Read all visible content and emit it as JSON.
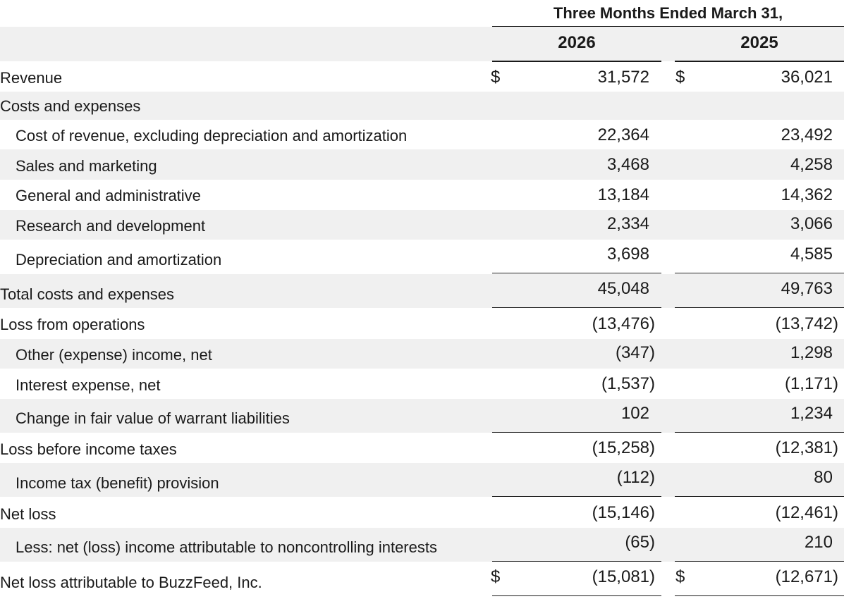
{
  "header": {
    "title": "Three Months Ended March 31,",
    "year1": "2026",
    "year2": "2025"
  },
  "currency_symbol": "$",
  "rows": [
    {
      "label": "Revenue",
      "v1": "31,572",
      "v2": "36,021"
    },
    {
      "label": "Costs and expenses",
      "v1": "",
      "v2": ""
    },
    {
      "label": "Cost of revenue, excluding depreciation and amortization",
      "v1": "22,364",
      "v2": "23,492"
    },
    {
      "label": "Sales and marketing",
      "v1": "3,468",
      "v2": "4,258"
    },
    {
      "label": "General and administrative",
      "v1": "13,184",
      "v2": "14,362"
    },
    {
      "label": "Research and development",
      "v1": "2,334",
      "v2": "3,066"
    },
    {
      "label": "Depreciation and amortization",
      "v1": "3,698",
      "v2": "4,585"
    },
    {
      "label": "Total costs and expenses",
      "v1": "45,048",
      "v2": "49,763"
    },
    {
      "label": "Loss from operations",
      "v1": "(13,476)",
      "v2": "(13,742)"
    },
    {
      "label": "Other (expense) income, net",
      "v1": "(347)",
      "v2": "1,298"
    },
    {
      "label": "Interest expense, net",
      "v1": "(1,537)",
      "v2": "(1,171)"
    },
    {
      "label": "Change in fair value of warrant liabilities",
      "v1": "102",
      "v2": "1,234"
    },
    {
      "label": "Loss before income taxes",
      "v1": "(15,258)",
      "v2": "(12,381)"
    },
    {
      "label": "Income tax (benefit) provision",
      "v1": "(112)",
      "v2": "80"
    },
    {
      "label": "Net loss",
      "v1": "(15,146)",
      "v2": "(12,461)"
    },
    {
      "label": "Less: net (loss) income attributable to noncontrolling interests",
      "v1": "(65)",
      "v2": "210"
    },
    {
      "label": "Net loss attributable to BuzzFeed, Inc.",
      "v1": "(15,081)",
      "v2": "(12,671)"
    }
  ]
}
